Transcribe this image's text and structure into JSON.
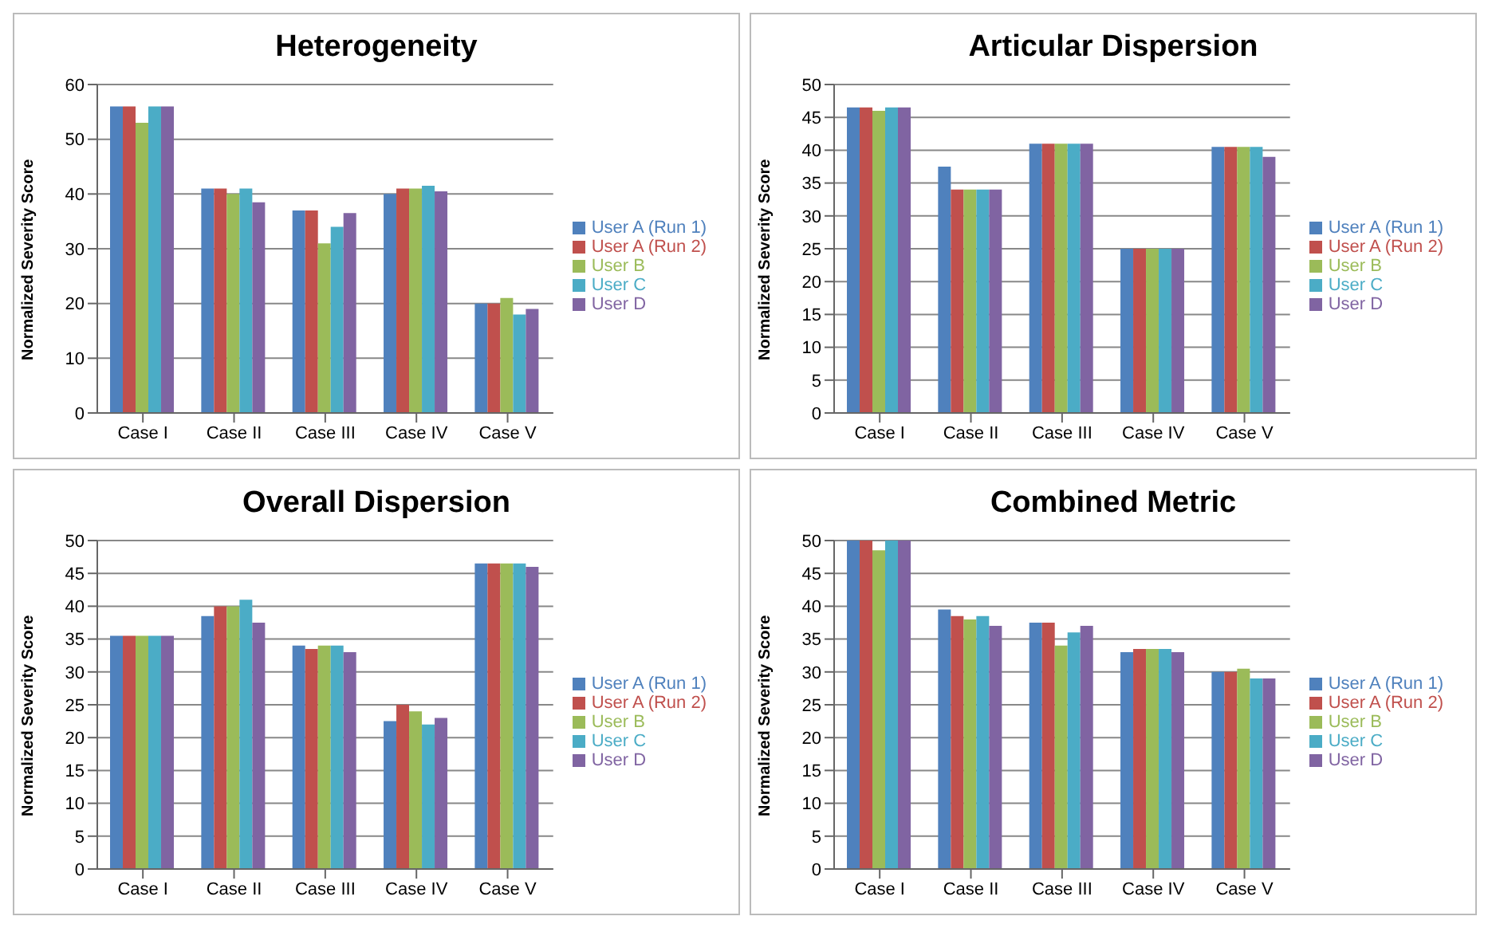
{
  "chart_data": [
    {
      "type": "bar",
      "title": "Heterogeneity",
      "ylabel": "Normalized Severity Score",
      "categories": [
        "Case I",
        "Case II",
        "Case III",
        "Case IV",
        "Case V"
      ],
      "ylim": [
        0,
        60
      ],
      "yticks": [
        0,
        10,
        20,
        30,
        40,
        50,
        60
      ],
      "grid": "y",
      "legend": "right",
      "series": [
        {
          "name": "User A (Run 1)",
          "color": "#4f81bd",
          "values": [
            56,
            41,
            37,
            40,
            20
          ]
        },
        {
          "name": "User A (Run 2)",
          "color": "#c0504d",
          "values": [
            56,
            41,
            37,
            41,
            20
          ]
        },
        {
          "name": "User B",
          "color": "#9bbb59",
          "values": [
            53,
            40,
            31,
            41,
            21
          ]
        },
        {
          "name": "User C",
          "color": "#4bacc6",
          "values": [
            56,
            41,
            34,
            41.5,
            18
          ]
        },
        {
          "name": "User D",
          "color": "#8064a2",
          "values": [
            56,
            38.5,
            36.5,
            40.5,
            19
          ]
        }
      ]
    },
    {
      "type": "bar",
      "title": "Articular Dispersion",
      "ylabel": "Normalized Severity Score",
      "categories": [
        "Case I",
        "Case II",
        "Case III",
        "Case IV",
        "Case V"
      ],
      "ylim": [
        0,
        50
      ],
      "yticks": [
        0,
        5,
        10,
        15,
        20,
        25,
        30,
        35,
        40,
        45,
        50
      ],
      "grid": "y",
      "legend": "right",
      "series": [
        {
          "name": "User A (Run 1)",
          "color": "#4f81bd",
          "values": [
            46.5,
            37.5,
            41,
            25,
            40.5
          ]
        },
        {
          "name": "User A (Run 2)",
          "color": "#c0504d",
          "values": [
            46.5,
            34,
            41,
            25,
            40.5
          ]
        },
        {
          "name": "User B",
          "color": "#9bbb59",
          "values": [
            46,
            34,
            41,
            25,
            40.5
          ]
        },
        {
          "name": "User C",
          "color": "#4bacc6",
          "values": [
            46.5,
            34,
            41,
            25,
            40.5
          ]
        },
        {
          "name": "User D",
          "color": "#8064a2",
          "values": [
            46.5,
            34,
            41,
            25,
            39
          ]
        }
      ]
    },
    {
      "type": "bar",
      "title": "Overall Dispersion",
      "ylabel": "Normalized Severity Score",
      "categories": [
        "Case I",
        "Case II",
        "Case III",
        "Case IV",
        "Case V"
      ],
      "ylim": [
        0,
        50
      ],
      "yticks": [
        0,
        5,
        10,
        15,
        20,
        25,
        30,
        35,
        40,
        45,
        50
      ],
      "grid": "y",
      "legend": "right",
      "series": [
        {
          "name": "User A (Run 1)",
          "color": "#4f81bd",
          "values": [
            35.5,
            38.5,
            34,
            22.5,
            46.5
          ]
        },
        {
          "name": "User A (Run 2)",
          "color": "#c0504d",
          "values": [
            35.5,
            40,
            33.5,
            25,
            46.5
          ]
        },
        {
          "name": "User B",
          "color": "#9bbb59",
          "values": [
            35.5,
            40,
            34,
            24,
            46.5
          ]
        },
        {
          "name": "User C",
          "color": "#4bacc6",
          "values": [
            35.5,
            41,
            34,
            22,
            46.5
          ]
        },
        {
          "name": "User D",
          "color": "#8064a2",
          "values": [
            35.5,
            37.5,
            33,
            23,
            46
          ]
        }
      ]
    },
    {
      "type": "bar",
      "title": "Combined Metric",
      "ylabel": "Normalized Severity Score",
      "categories": [
        "Case I",
        "Case II",
        "Case III",
        "Case IV",
        "Case V"
      ],
      "ylim": [
        0,
        50
      ],
      "yticks": [
        0,
        5,
        10,
        15,
        20,
        25,
        30,
        35,
        40,
        45,
        50
      ],
      "grid": "y",
      "legend": "right",
      "series": [
        {
          "name": "User A (Run 1)",
          "color": "#4f81bd",
          "values": [
            50,
            39.5,
            37.5,
            33,
            30
          ]
        },
        {
          "name": "User A (Run 2)",
          "color": "#c0504d",
          "values": [
            50,
            38.5,
            37.5,
            33.5,
            30
          ]
        },
        {
          "name": "User B",
          "color": "#9bbb59",
          "values": [
            48.5,
            38,
            34,
            33.5,
            30.5
          ]
        },
        {
          "name": "User C",
          "color": "#4bacc6",
          "values": [
            50,
            38.5,
            36,
            33.5,
            29
          ]
        },
        {
          "name": "User D",
          "color": "#8064a2",
          "values": [
            50,
            37,
            37,
            33,
            29
          ]
        }
      ]
    }
  ]
}
